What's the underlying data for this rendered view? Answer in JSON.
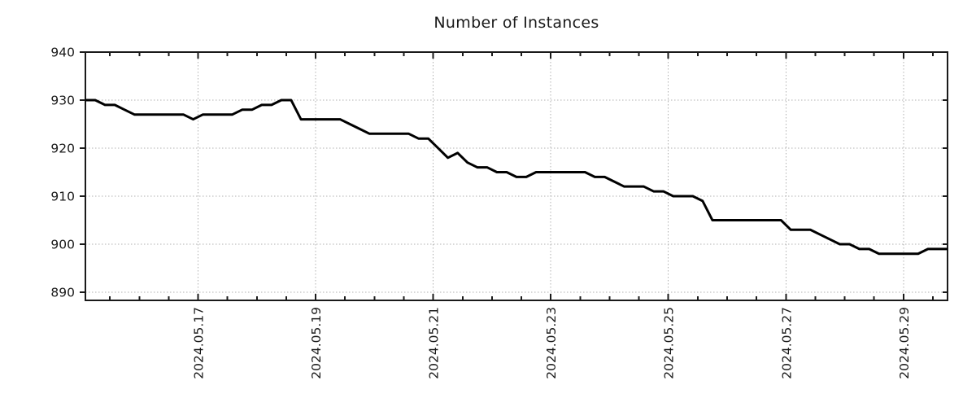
{
  "chart_data": {
    "type": "line",
    "title": "Number of Instances",
    "x_axis": {
      "tick_labels": [
        "2024.05.17",
        "2024.05.19",
        "2024.05.21",
        "2024.05.23",
        "2024.05.25",
        "2024.05.27",
        "2024.05.29"
      ],
      "tick_hours": [
        46,
        94,
        142,
        190,
        238,
        286,
        334
      ],
      "minor_tick_start_hour": 10,
      "minor_tick_step_hours": 12,
      "range_hours": [
        0,
        352
      ],
      "label_rotation_deg": -90
    },
    "y_axis": {
      "ticks": [
        890,
        900,
        910,
        920,
        930,
        940
      ],
      "range": [
        888.3,
        940
      ]
    },
    "grid": {
      "style": "dotted",
      "on": true
    },
    "legend": {
      "visible": false
    },
    "series": [
      {
        "name": "Number of Instances",
        "start_time": "2024-05-15 02:00",
        "interval_hours": 4,
        "values": [
          930,
          930,
          929,
          929,
          928,
          927,
          927,
          927,
          927,
          927,
          927,
          926,
          927,
          927,
          927,
          927,
          928,
          928,
          929,
          929,
          930,
          930,
          926,
          926,
          926,
          926,
          926,
          925,
          924,
          923,
          923,
          923,
          923,
          923,
          922,
          922,
          920,
          918,
          919,
          917,
          916,
          916,
          915,
          915,
          914,
          914,
          915,
          915,
          915,
          915,
          915,
          915,
          914,
          914,
          913,
          912,
          912,
          912,
          911,
          911,
          910,
          910,
          910,
          909,
          905,
          905,
          905,
          905,
          905,
          905,
          905,
          905,
          903,
          903,
          903,
          902,
          901,
          900,
          900,
          899,
          899,
          898,
          898,
          898,
          898,
          898,
          899,
          899,
          899
        ]
      }
    ],
    "colors": {
      "line": "#000000",
      "grid": "#b0b0b0",
      "border": "#1a1a1a",
      "text": "#1a1a1a",
      "background": "#ffffff"
    }
  }
}
